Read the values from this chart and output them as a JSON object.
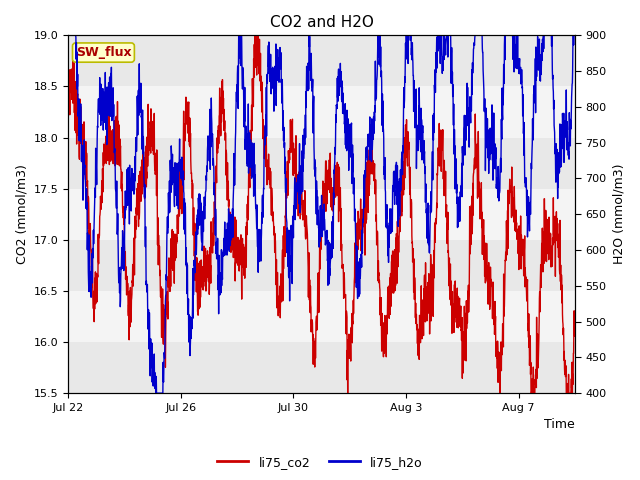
{
  "title": "CO2 and H2O",
  "xlabel": "Time",
  "ylabel_left": "CO2 (mmol/m3)",
  "ylabel_right": "H2O (mmol/m3)",
  "legend_label_red": "li75_co2",
  "legend_label_blue": "li75_h2o",
  "annotation_text": "SW_flux",
  "ylim_left": [
    15.5,
    19.0
  ],
  "ylim_right": [
    400,
    900
  ],
  "yticks_left": [
    15.5,
    16.0,
    16.5,
    17.0,
    17.5,
    18.0,
    18.5,
    19.0
  ],
  "yticks_right": [
    400,
    450,
    500,
    550,
    600,
    650,
    700,
    750,
    800,
    850,
    900
  ],
  "color_red": "#cc0000",
  "color_blue": "#0000cc",
  "background_plot": "#ffffff",
  "background_fig": "#ffffff",
  "band_color_dark": "#e8e8e8",
  "band_color_light": "#f4f4f4",
  "annotation_bg": "#ffffcc",
  "annotation_border": "#bbbb00",
  "title_fontsize": 11,
  "axis_fontsize": 9,
  "tick_fontsize": 8,
  "legend_fontsize": 9,
  "line_width": 1.0,
  "x_ticks_labels": [
    "Jul 22",
    "Jul 26",
    "Jul 30",
    "Aug 3",
    "Aug 7"
  ],
  "x_ticks_positions": [
    0,
    4,
    8,
    12,
    16
  ],
  "total_days": 18.0
}
